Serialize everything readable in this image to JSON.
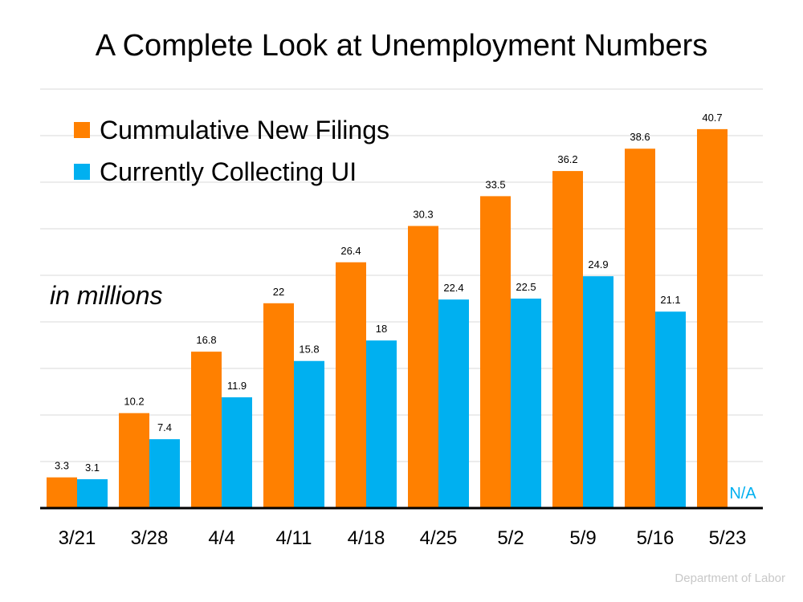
{
  "chart_data": {
    "type": "bar",
    "title": "A Complete Look at Unemployment Numbers",
    "categories": [
      "3/21",
      "3/28",
      "4/4",
      "4/11",
      "4/18",
      "4/25",
      "5/2",
      "5/9",
      "5/16",
      "5/23"
    ],
    "series": [
      {
        "name": "Cummulative New Filings",
        "color": "#ff8000",
        "values": [
          3.3,
          10.2,
          16.8,
          22,
          26.4,
          30.3,
          33.5,
          36.2,
          38.6,
          40.7
        ]
      },
      {
        "name": "Currently Collecting UI",
        "color": "#00b0f0",
        "values": [
          3.1,
          7.4,
          11.9,
          15.8,
          18,
          22.4,
          22.5,
          24.9,
          21.1,
          null
        ]
      }
    ],
    "missing_label": "N/A",
    "unit_label": "in millions",
    "source": "Department of Labor",
    "ylim": [
      0,
      45
    ],
    "grid": true,
    "legend_position": "top-left"
  }
}
